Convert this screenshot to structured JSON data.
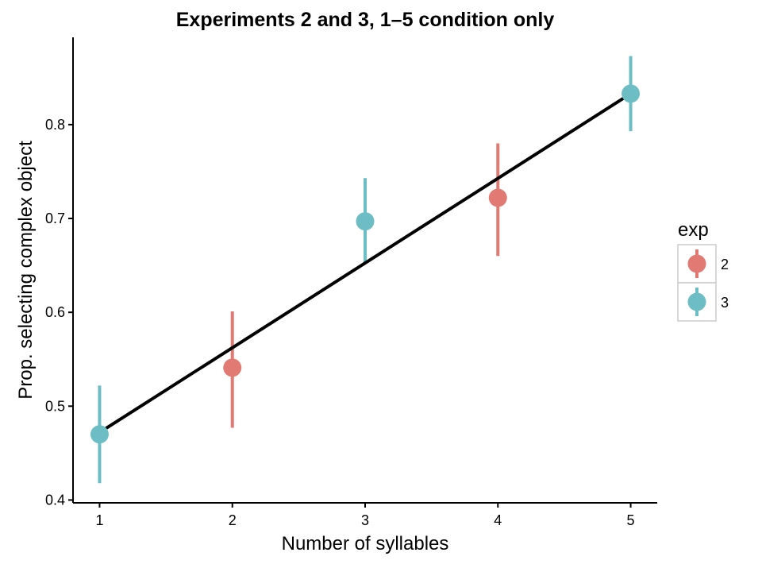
{
  "chart_data": {
    "type": "scatter",
    "title": "Experiments 2 and 3, 1–5 condition only",
    "xlabel": "Number of syllables",
    "ylabel": "Prop. selecting complex object",
    "x_ticks": [
      "1",
      "2",
      "3",
      "4",
      "5"
    ],
    "y_ticks": [
      "0.4",
      "0.5",
      "0.6",
      "0.7",
      "0.8"
    ],
    "xlim": [
      0.8,
      5.2
    ],
    "ylim": [
      0.397,
      0.893
    ],
    "grid": false,
    "legend": {
      "title": "exp",
      "position": "right",
      "entries": [
        {
          "label": "2",
          "color": "#E07A72"
        },
        {
          "label": "3",
          "color": "#6DBEC4"
        }
      ]
    },
    "series": [
      {
        "name": "2",
        "color": "#E07A72",
        "points": [
          {
            "x": 2,
            "y": 0.541,
            "lo": 0.477,
            "hi": 0.601
          },
          {
            "x": 4,
            "y": 0.722,
            "lo": 0.66,
            "hi": 0.78
          }
        ]
      },
      {
        "name": "3",
        "color": "#6DBEC4",
        "points": [
          {
            "x": 1,
            "y": 0.47,
            "lo": 0.418,
            "hi": 0.522
          },
          {
            "x": 3,
            "y": 0.697,
            "lo": 0.652,
            "hi": 0.743
          },
          {
            "x": 5,
            "y": 0.833,
            "lo": 0.793,
            "hi": 0.873
          }
        ]
      }
    ],
    "fit_line": {
      "color": "#000000",
      "points": [
        {
          "x": 1,
          "y": 0.472
        },
        {
          "x": 5,
          "y": 0.833
        }
      ]
    }
  }
}
